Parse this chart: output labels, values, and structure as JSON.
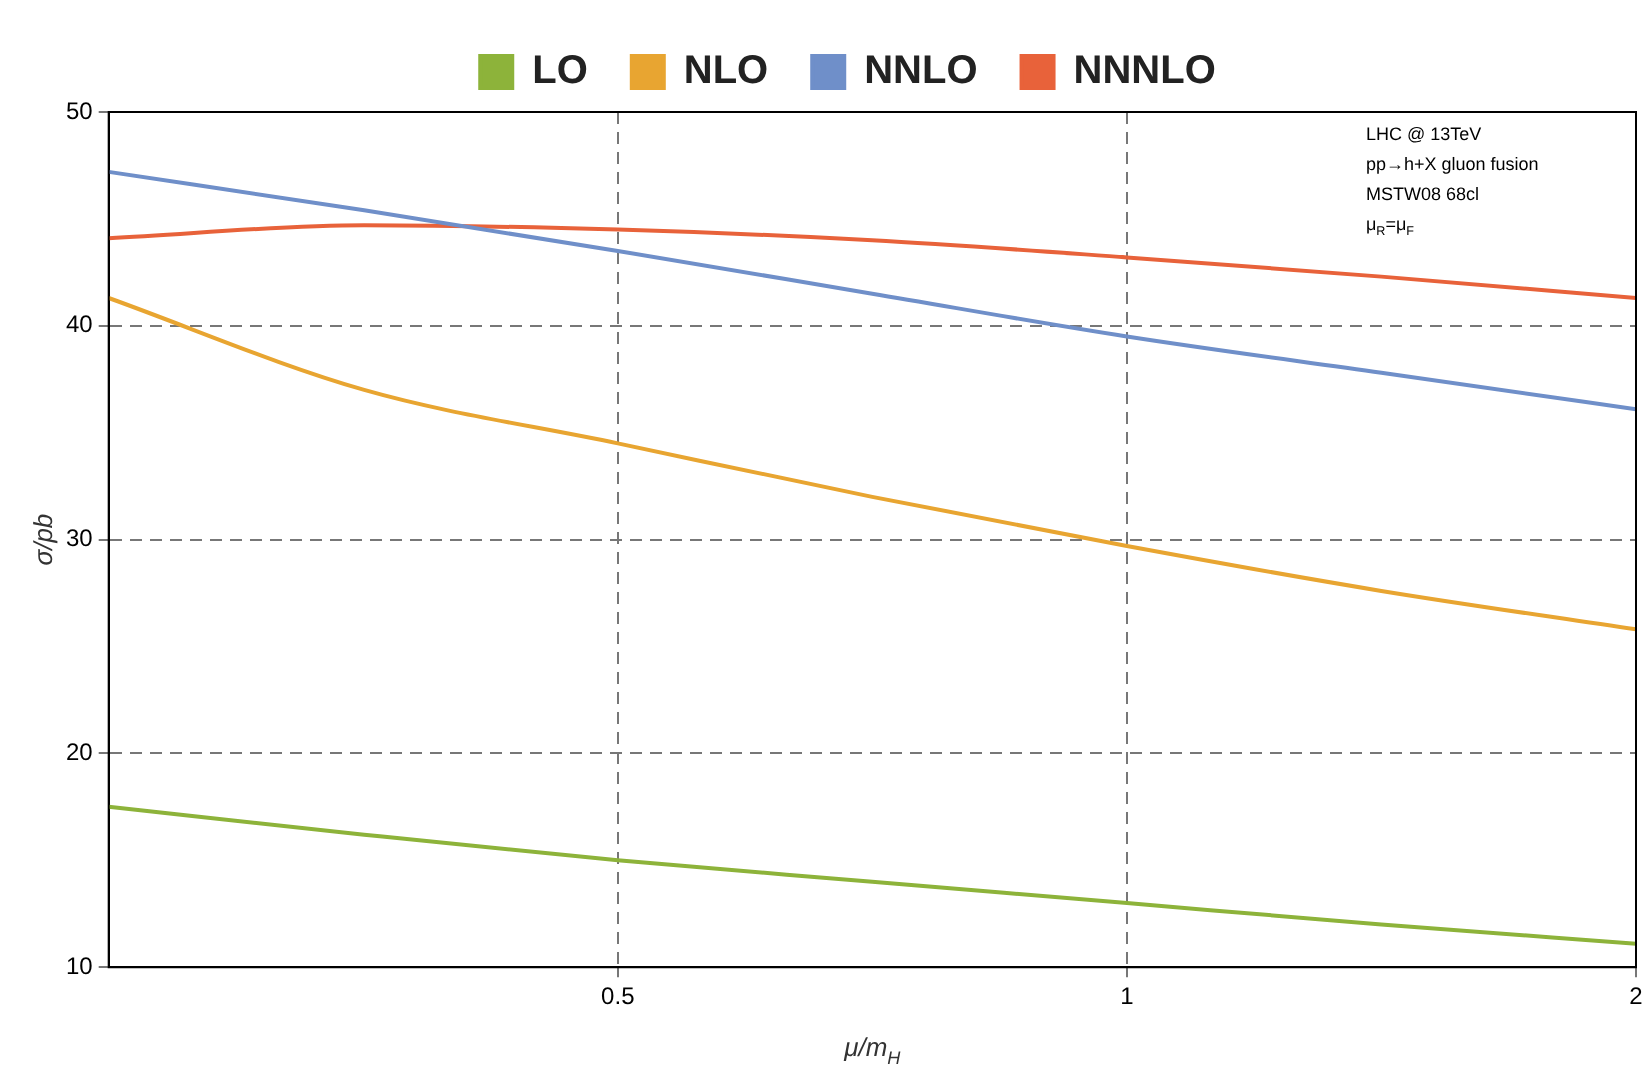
{
  "chart_data": {
    "type": "line",
    "xlabel": "μ/m$_{H}$",
    "ylabel": "σ/pb",
    "x": [
      0.25,
      0.354,
      0.5,
      0.707,
      1,
      1.414,
      2
    ],
    "series": [
      {
        "name": "LO",
        "color": "#8db33a",
        "values": [
          17.5,
          16.2,
          15.0,
          14.0,
          13.0,
          12.0,
          11.1
        ]
      },
      {
        "name": "NLO",
        "color": "#e8a531",
        "values": [
          41.3,
          37.0,
          34.5,
          32.0,
          29.7,
          27.6,
          25.8
        ]
      },
      {
        "name": "NNLO",
        "color": "#6f8fc9",
        "values": [
          47.2,
          45.4,
          43.5,
          41.5,
          39.5,
          37.8,
          36.1
        ]
      },
      {
        "name": "NNNLO",
        "color": "#e8623a",
        "values": [
          44.1,
          44.7,
          44.5,
          44.0,
          43.2,
          42.3,
          41.3
        ]
      }
    ],
    "log": "x",
    "xlim": [
      0.25,
      2
    ],
    "xticks": [
      0.5,
      1,
      2
    ],
    "ylim": [
      10,
      50
    ],
    "yticks": [
      10,
      20,
      30,
      40,
      50
    ],
    "grid": true,
    "legend": "top",
    "marker": "none",
    "line_style": "solid",
    "annotations": [
      "LHC @ 13TeV",
      "pp→h+X gluon fusion",
      "MSTW08 68cl",
      "μ$_{R}$=μ$_{F}$"
    ]
  }
}
